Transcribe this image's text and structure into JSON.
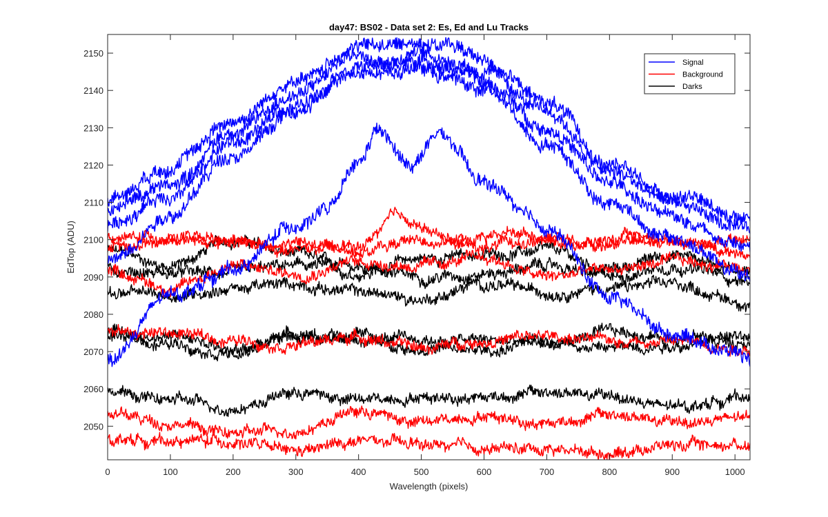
{
  "chart_data": {
    "type": "line",
    "title": "day47: BS02 - Data set 2: Es, Ed and Lu Tracks",
    "xlabel": "Wavelength (pixels)",
    "ylabel": "EdTop (ADU)",
    "xlim": [
      0,
      1024
    ],
    "ylim": [
      2041,
      2155
    ],
    "xticks": [
      0,
      100,
      200,
      300,
      400,
      500,
      600,
      700,
      800,
      900,
      1000
    ],
    "yticks": [
      2050,
      2060,
      2070,
      2080,
      2090,
      2100,
      2110,
      2120,
      2130,
      2140,
      2150
    ],
    "grid": false,
    "legend_position": "top-right",
    "legend": [
      {
        "label": "Signal",
        "color": "#0000ff"
      },
      {
        "label": "Background",
        "color": "#ff0000"
      },
      {
        "label": "Darks",
        "color": "#000000"
      }
    ],
    "series": [
      {
        "group": "Signal",
        "color": "#0000ff",
        "x": [
          0,
          100,
          200,
          300,
          400,
          450,
          500,
          550,
          600,
          700,
          800,
          900,
          1024
        ],
        "y": [
          2111,
          2120,
          2132,
          2142,
          2152,
          2152,
          2153,
          2152,
          2148,
          2137,
          2120,
          2112,
          2106
        ]
      },
      {
        "group": "Signal",
        "color": "#0000ff",
        "x": [
          0,
          100,
          200,
          300,
          400,
          450,
          500,
          550,
          600,
          700,
          800,
          900,
          1024
        ],
        "y": [
          2108,
          2115,
          2129,
          2139,
          2150,
          2148,
          2150,
          2148,
          2145,
          2134,
          2118,
          2110,
          2102
        ]
      },
      {
        "group": "Signal",
        "color": "#0000ff",
        "x": [
          0,
          100,
          200,
          300,
          400,
          450,
          500,
          550,
          600,
          700,
          800,
          900,
          1024
        ],
        "y": [
          2104,
          2112,
          2126,
          2136,
          2147,
          2147,
          2148,
          2146,
          2142,
          2130,
          2115,
          2106,
          2098
        ]
      },
      {
        "group": "Signal",
        "color": "#0000ff",
        "x": [
          0,
          100,
          200,
          300,
          400,
          450,
          500,
          550,
          600,
          700,
          800,
          900,
          1024
        ],
        "y": [
          2094,
          2107,
          2123,
          2134,
          2146,
          2145,
          2146,
          2143,
          2140,
          2126,
          2110,
          2100,
          2090
        ]
      },
      {
        "group": "Signal",
        "color": "#0000ff",
        "x": [
          0,
          100,
          200,
          300,
          350,
          400,
          430,
          480,
          530,
          600,
          700,
          800,
          900,
          1000,
          1024
        ],
        "y": [
          2068,
          2085,
          2092,
          2104,
          2108,
          2120,
          2129,
          2120,
          2128,
          2115,
          2103,
          2085,
          2075,
          2070,
          2068
        ]
      },
      {
        "group": "Background",
        "color": "#ff0000",
        "x": [
          0,
          100,
          200,
          300,
          400,
          460,
          550,
          650,
          750,
          850,
          950,
          1024
        ],
        "y": [
          2100,
          2101,
          2099,
          2097,
          2098,
          2106,
          2100,
          2102,
          2099,
          2101,
          2099,
          2102
        ]
      },
      {
        "group": "Background",
        "color": "#ff0000",
        "x": [
          0,
          100,
          200,
          300,
          400,
          500,
          600,
          700,
          800,
          900,
          1024
        ],
        "y": [
          2097,
          2100,
          2099,
          2099,
          2097,
          2100,
          2098,
          2100,
          2099,
          2100,
          2096
        ]
      },
      {
        "group": "Background",
        "color": "#ff0000",
        "x": [
          0,
          100,
          200,
          300,
          400,
          500,
          600,
          700,
          800,
          900,
          1024
        ],
        "y": [
          2092,
          2087,
          2093,
          2091,
          2094,
          2093,
          2095,
          2090,
          2092,
          2094,
          2093
        ]
      },
      {
        "group": "Background",
        "color": "#ff0000",
        "x": [
          0,
          100,
          200,
          300,
          400,
          500,
          600,
          700,
          800,
          900,
          1024
        ],
        "y": [
          2075,
          2075,
          2073,
          2072,
          2074,
          2071,
          2073,
          2074,
          2073,
          2073,
          2071
        ]
      },
      {
        "group": "Background",
        "color": "#ff0000",
        "x": [
          0,
          100,
          200,
          300,
          400,
          500,
          600,
          700,
          800,
          900,
          1024
        ],
        "y": [
          2053,
          2051,
          2048,
          2049,
          2054,
          2051,
          2053,
          2051,
          2053,
          2051,
          2052
        ]
      },
      {
        "group": "Background",
        "color": "#ff0000",
        "x": [
          0,
          100,
          200,
          300,
          400,
          500,
          600,
          700,
          800,
          900,
          1024
        ],
        "y": [
          2047,
          2046,
          2046,
          2043,
          2046,
          2045,
          2044,
          2044,
          2043,
          2045,
          2045
        ]
      },
      {
        "group": "Darks",
        "color": "#000000",
        "x": [
          0,
          100,
          200,
          300,
          400,
          500,
          600,
          700,
          800,
          900,
          1024
        ],
        "y": [
          2097,
          2093,
          2100,
          2096,
          2091,
          2095,
          2096,
          2097,
          2092,
          2096,
          2092
        ]
      },
      {
        "group": "Darks",
        "color": "#000000",
        "x": [
          0,
          100,
          200,
          300,
          400,
          500,
          600,
          700,
          800,
          900,
          1024
        ],
        "y": [
          2092,
          2091,
          2091,
          2093,
          2093,
          2090,
          2091,
          2093,
          2090,
          2093,
          2089
        ]
      },
      {
        "group": "Darks",
        "color": "#000000",
        "x": [
          0,
          100,
          200,
          300,
          400,
          500,
          600,
          700,
          800,
          900,
          1024
        ],
        "y": [
          2086,
          2085,
          2087,
          2088,
          2086,
          2084,
          2088,
          2086,
          2087,
          2088,
          2083
        ]
      },
      {
        "group": "Darks",
        "color": "#000000",
        "x": [
          0,
          100,
          200,
          300,
          400,
          500,
          600,
          700,
          800,
          900,
          1024
        ],
        "y": [
          2075,
          2074,
          2071,
          2074,
          2074,
          2073,
          2073,
          2072,
          2075,
          2074,
          2074
        ]
      },
      {
        "group": "Darks",
        "color": "#000000",
        "x": [
          0,
          100,
          200,
          300,
          400,
          500,
          600,
          700,
          800,
          900,
          1024
        ],
        "y": [
          2074,
          2072,
          2070,
          2075,
          2073,
          2071,
          2070,
          2073,
          2071,
          2072,
          2073
        ]
      },
      {
        "group": "Darks",
        "color": "#000000",
        "x": [
          0,
          100,
          200,
          300,
          400,
          500,
          600,
          700,
          800,
          900,
          1024
        ],
        "y": [
          2059,
          2057,
          2055,
          2059,
          2057,
          2058,
          2058,
          2059,
          2058,
          2055,
          2058
        ]
      }
    ]
  }
}
